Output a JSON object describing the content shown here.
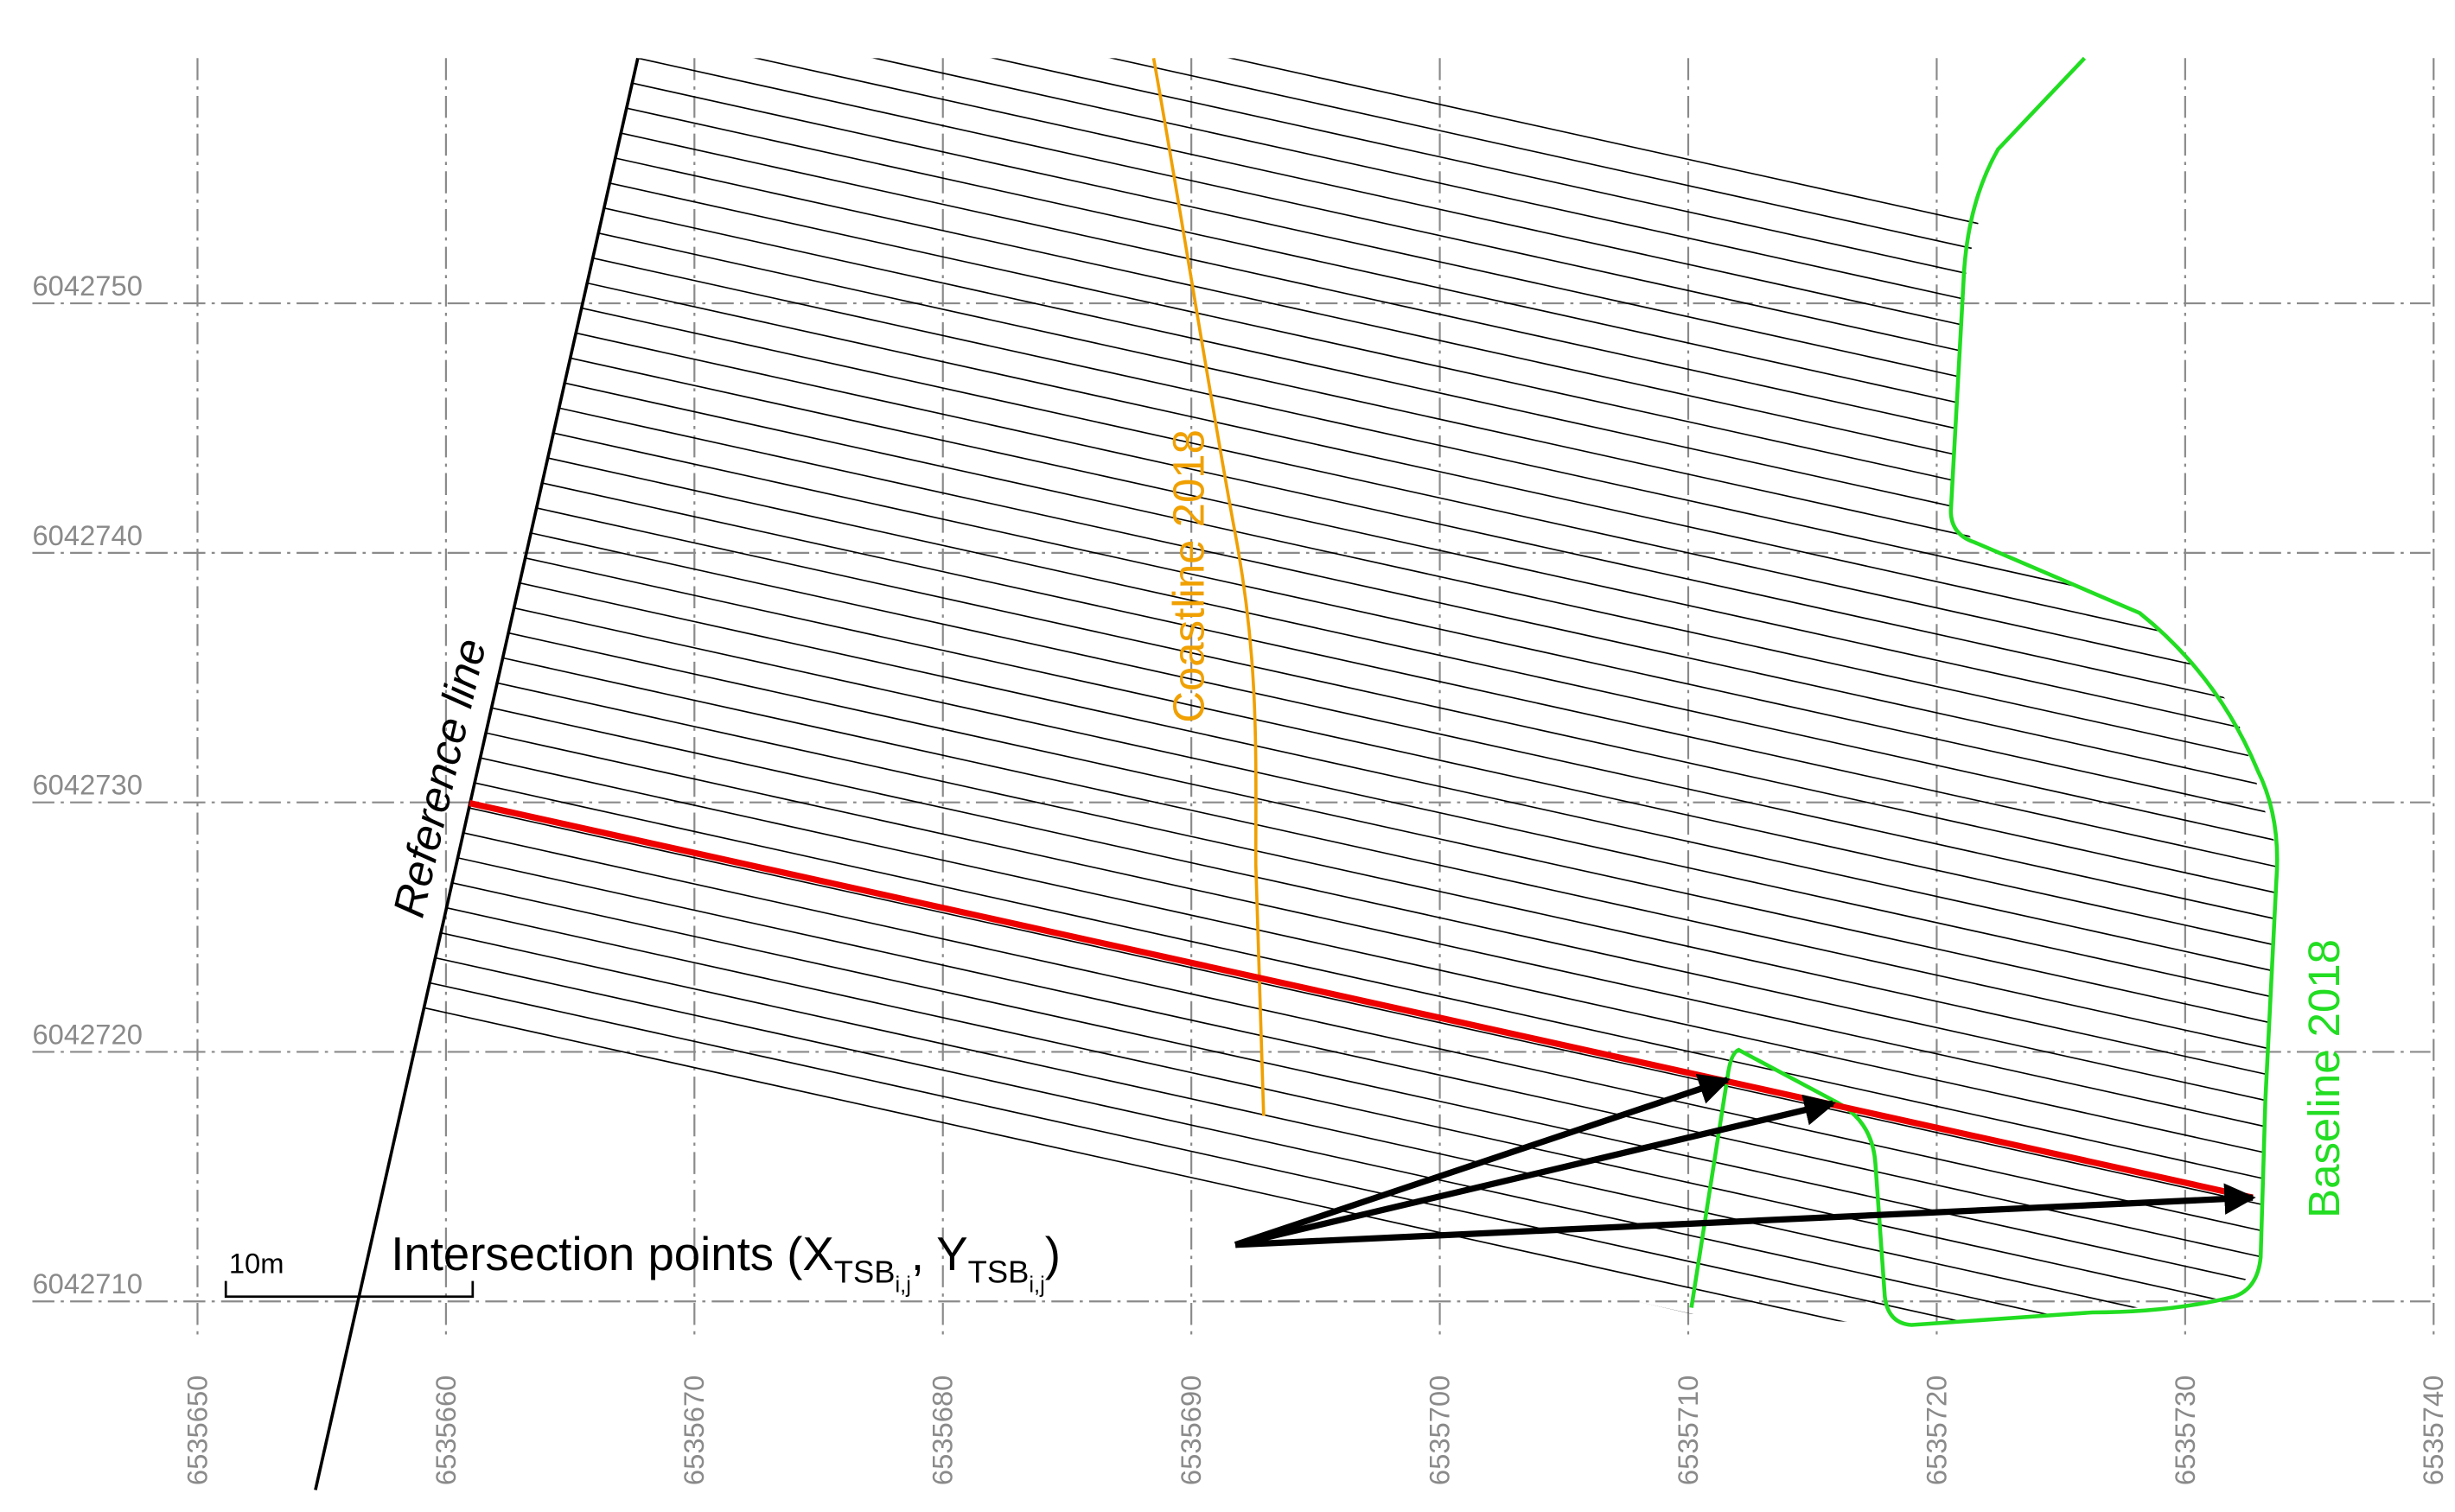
{
  "map": {
    "x_ticks": [
      6535650,
      6535660,
      6535670,
      6535680,
      6535690,
      6535700,
      6535710,
      6535720,
      6535730,
      6535740
    ],
    "y_ticks": [
      6042710,
      6042720,
      6042730,
      6042740,
      6042750
    ],
    "labels": {
      "reference_line": "Reference line",
      "coastline": "Coastline 2018",
      "baseline": "Baseline 2018",
      "scale_bar": "10m"
    },
    "intersection_label": {
      "text": "Intersection points (X",
      "x_sub": "TSB",
      "x_subsub": "i,j",
      "middle": ", Y",
      "y_sub": "TSB",
      "y_subsub": "i,j",
      "end": ")"
    }
  }
}
